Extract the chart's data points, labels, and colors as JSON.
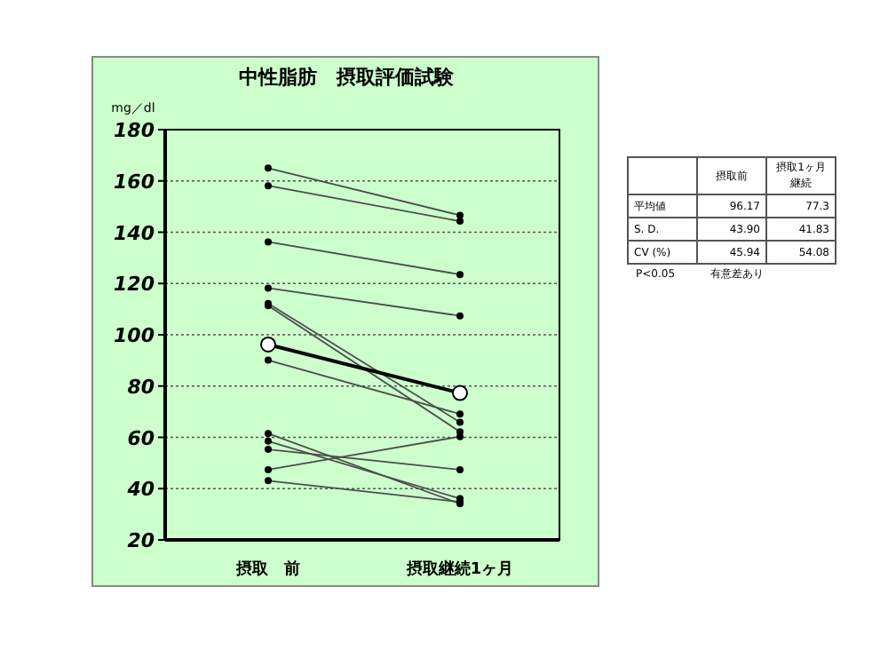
{
  "chart_data": [
    {
      "type": "line",
      "title": "中性脂肪　摂取評価試験",
      "ylabel": "mg／dl",
      "categories": [
        "摂取　前",
        "摂取継続1ヶ月"
      ],
      "series": [
        {
          "color": "#4d4d4d",
          "values": [
            165.0,
            146.6
          ]
        },
        {
          "color": "#4d4d4d",
          "values": [
            158.1,
            144.3
          ]
        },
        {
          "color": "#4d4d4d",
          "values": [
            136.2,
            123.5
          ]
        },
        {
          "color": "#4d4d4d",
          "values": [
            118.2,
            107.4
          ]
        },
        {
          "color": "#4d4d4d",
          "values": [
            112.2,
            65.9
          ]
        },
        {
          "color": "#4d4d4d",
          "values": [
            111.3,
            62.2
          ]
        },
        {
          "color": "#4d4d4d",
          "values": [
            90.1,
            69.1
          ]
        },
        {
          "color": "#4d4d4d",
          "values": [
            61.5,
            34.1
          ]
        },
        {
          "color": "#4d4d4d",
          "values": [
            58.5,
            36.1
          ]
        },
        {
          "color": "#4d4d4d",
          "values": [
            55.3,
            47.4
          ]
        },
        {
          "color": "#4d4d4d",
          "values": [
            47.4,
            60.3
          ]
        },
        {
          "color": "#4d4d4d",
          "values": [
            43.1,
            34.8
          ]
        },
        {
          "color": "#000000",
          "values": [
            96.2,
            77.3
          ]
        }
      ],
      "ylim": [
        20,
        180
      ],
      "yticks": [
        20,
        40,
        60,
        80,
        100,
        120,
        140,
        160,
        180
      ],
      "grid": "y",
      "marker": "circle"
    },
    {
      "type": "other",
      "annotations": [
        "摂取前",
        "摂取1ヶ月継続",
        "平均値",
        "96.17",
        "77.3",
        "S. D.",
        "43.90",
        "41.83",
        "CV (%)",
        "45.94",
        "54.08",
        "P<0.05",
        "有意差あり"
      ]
    }
  ]
}
